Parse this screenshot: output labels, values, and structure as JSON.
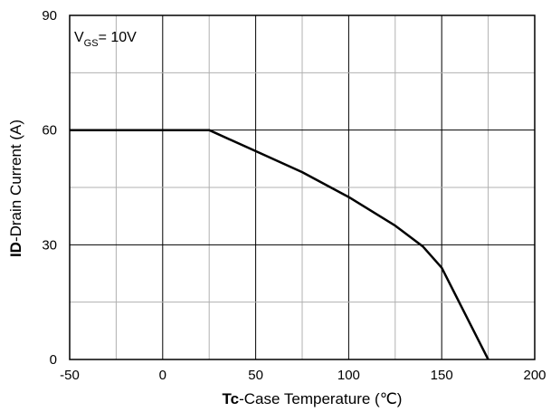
{
  "chart_data": {
    "type": "line",
    "annotation": {
      "prefix": "V",
      "subscript": "GS",
      "suffix": "= 10V"
    },
    "xlabel": {
      "bold": "Tc",
      "rest": "-Case Temperature  (℃)"
    },
    "ylabel": {
      "bold": "ID",
      "rest": "-Drain Current  (A)"
    },
    "xlim": [
      -50,
      200
    ],
    "ylim": [
      0,
      90
    ],
    "xticks": [
      -50,
      0,
      50,
      100,
      150,
      200
    ],
    "yticks": [
      0,
      30,
      60,
      90
    ],
    "x_minor_step": 25,
    "y_minor_step": 15,
    "grid": true,
    "series": [
      {
        "x": [
          -50,
          25,
          50,
          75,
          100,
          125,
          140,
          150,
          175
        ],
        "y": [
          60,
          60,
          54.5,
          49,
          42.5,
          35,
          29.5,
          24,
          0
        ]
      }
    ]
  }
}
